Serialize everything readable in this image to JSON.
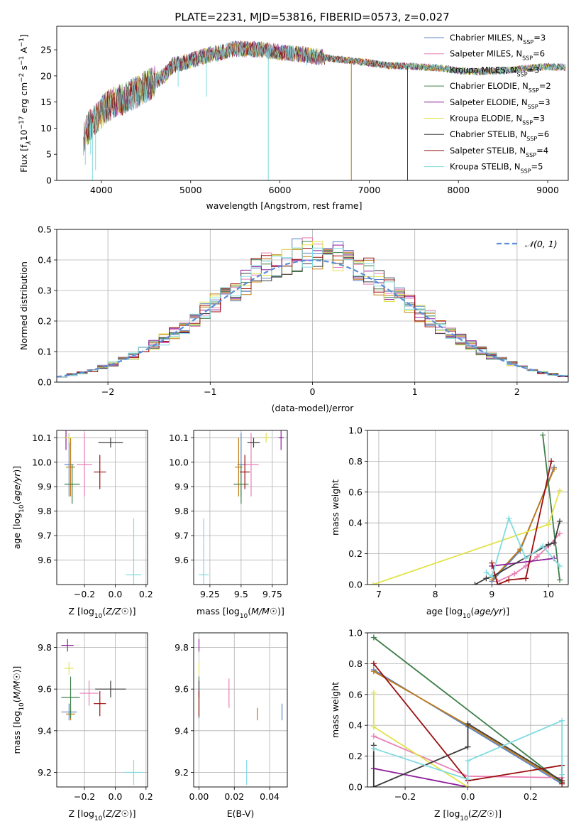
{
  "figure_title": "PLATE=2231, MJD=53816, FIBERID=0573, z=0.027",
  "colors": {
    "Chabrier MILES": "#5b84c4",
    "Salpeter MILES": "#e87eb4",
    "Kroupa MILES": "#c07b16",
    "Chabrier ELODIE": "#3f7f4a",
    "Salpeter ELODIE": "#8e1f9a",
    "Kroupa ELODIE": "#e1e34a",
    "Chabrier STELIB": "#3c3c3c",
    "Salpeter STELIB": "#9b0e0e",
    "Kroupa STELIB": "#80dbe0",
    "gauss": "#5b8dd6",
    "grid": "#b0b0b0"
  },
  "chart_data": [
    {
      "id": "spectrum",
      "type": "line",
      "title": "PLATE=2231, MJD=53816, FIBERID=0573, z=0.027",
      "xlabel": "wavelength [Angstrom, rest frame]",
      "ylabel_parts": [
        "Flux [f",
        "λ",
        "10",
        "−17",
        " erg cm",
        "−2",
        " s",
        "−1",
        " A",
        "−1",
        "]"
      ],
      "xlim": [
        3500,
        9230
      ],
      "ylim": [
        0,
        29.5
      ],
      "xticks": [
        4000,
        5000,
        6000,
        7000,
        8000,
        9000
      ],
      "yticks": [
        0,
        5,
        10,
        15,
        20,
        25
      ],
      "grid": false,
      "legend_position": "top-right",
      "series_legend": [
        {
          "name": "Chabrier MILES",
          "label": "Chabrier MILES, N",
          "sub": "SSP",
          "tail": "=3"
        },
        {
          "name": "Salpeter MILES",
          "label": "Salpeter MILES, N",
          "sub": "SSP",
          "tail": "=6"
        },
        {
          "name": "Kroupa MILES",
          "label": "Kroupa MILES, N",
          "sub": "SSP",
          "tail": "=3"
        },
        {
          "name": "Chabrier ELODIE",
          "label": "Chabrier ELODIE, N",
          "sub": "SSP",
          "tail": "=2"
        },
        {
          "name": "Salpeter ELODIE",
          "label": "Salpeter ELODIE, N",
          "sub": "SSP",
          "tail": "=3"
        },
        {
          "name": "Kroupa ELODIE",
          "label": "Kroupa ELODIE, N",
          "sub": "SSP",
          "tail": "=3"
        },
        {
          "name": "Chabrier STELIB",
          "label": "Chabrier STELIB, N",
          "sub": "SSP",
          "tail": "=6"
        },
        {
          "name": "Salpeter STELIB",
          "label": "Salpeter STELIB, N",
          "sub": "SSP",
          "tail": "=4"
        },
        {
          "name": "Kroupa STELIB",
          "label": "Kroupa STELIB, N",
          "sub": "SSP",
          "tail": "=5"
        }
      ],
      "continuum": [
        [
          3800,
          8
        ],
        [
          3850,
          10
        ],
        [
          3950,
          12
        ],
        [
          4050,
          14
        ],
        [
          4150,
          15
        ],
        [
          4300,
          16
        ],
        [
          4400,
          17
        ],
        [
          4500,
          18
        ],
        [
          4700,
          20
        ],
        [
          4800,
          22
        ],
        [
          5000,
          23
        ],
        [
          5200,
          24
        ],
        [
          5500,
          25.2
        ],
        [
          5800,
          25
        ],
        [
          6000,
          24.5
        ],
        [
          6200,
          24.2
        ],
        [
          6500,
          23.5
        ],
        [
          7000,
          22.5
        ],
        [
          7200,
          22
        ],
        [
          7500,
          21.8
        ],
        [
          7800,
          21.5
        ],
        [
          8000,
          21
        ],
        [
          8200,
          20.8
        ],
        [
          8500,
          21
        ],
        [
          8800,
          21.5
        ],
        [
          9000,
          21.8
        ],
        [
          9200,
          21.6
        ]
      ],
      "dips": [
        [
          3820,
          3
        ],
        [
          3880,
          5
        ],
        [
          3900,
          0
        ],
        [
          3935,
          2
        ],
        [
          4340,
          16
        ],
        [
          4860,
          18
        ],
        [
          5175,
          16
        ],
        [
          5870,
          0
        ],
        [
          6300,
          22
        ],
        [
          6800,
          0
        ],
        [
          7430,
          0
        ]
      ]
    },
    {
      "id": "residuals",
      "type": "step",
      "xlabel": "(data-model)/error",
      "ylabel": "Normed distribution",
      "xlim": [
        -2.5,
        2.5
      ],
      "ylim": [
        0,
        0.5
      ],
      "xticks": [
        -2,
        -1,
        0,
        1,
        2
      ],
      "yticks": [
        0.0,
        0.1,
        0.2,
        0.3,
        0.4,
        0.5
      ],
      "grid": true,
      "legend_position": "top-right",
      "legend_label": "𝒩(0, 1)",
      "bin_width": 0.1,
      "reference_curve": "normal(0,1)"
    },
    {
      "id": "age-vs-Z",
      "type": "errorbar",
      "xlabel": "Z [log10(Z/Z☉)]",
      "ylabel": "age  [log10(age/yr)]",
      "xlim": [
        -0.38,
        0.21
      ],
      "ylim": [
        9.5,
        10.13
      ],
      "xticks": [
        -0.2,
        0.0,
        0.2
      ],
      "yticks": [
        9.6,
        9.7,
        9.8,
        9.9,
        10.0,
        10.1
      ],
      "grid": true,
      "points": [
        {
          "series": "Chabrier MILES",
          "x": -0.3,
          "y": 9.99,
          "xerr": 0.03,
          "yerr": 0.13
        },
        {
          "series": "Salpeter MILES",
          "x": -0.2,
          "y": 9.99,
          "xerr": 0.05,
          "yerr": 0.13
        },
        {
          "series": "Kroupa MILES",
          "x": -0.29,
          "y": 9.98,
          "xerr": 0.03,
          "yerr": 0.12
        },
        {
          "series": "Chabrier ELODIE",
          "x": -0.28,
          "y": 9.91,
          "xerr": 0.05,
          "yerr": 0.08
        },
        {
          "series": "Salpeter ELODIE",
          "x": -0.32,
          "y": 10.1,
          "xerr": 0.01,
          "yerr": 0.05
        },
        {
          "series": "Kroupa ELODIE",
          "x": -0.3,
          "y": 10.1,
          "xerr": 0.03,
          "yerr": 0.02
        },
        {
          "series": "Chabrier STELIB",
          "x": -0.03,
          "y": 10.08,
          "xerr": 0.08,
          "yerr": 0.02
        },
        {
          "series": "Salpeter STELIB",
          "x": -0.1,
          "y": 9.96,
          "xerr": 0.04,
          "yerr": 0.07
        },
        {
          "series": "Kroupa STELIB",
          "x": 0.12,
          "y": 9.54,
          "xerr": 0.05,
          "yerr": 0.23
        }
      ]
    },
    {
      "id": "age-vs-mass",
      "type": "errorbar",
      "xlabel": "mass [log10(M/M☉)]",
      "xlim": [
        9.12,
        9.87
      ],
      "ylim": [
        9.5,
        10.13
      ],
      "xticks": [
        9.25,
        9.5,
        9.75
      ],
      "yticks": [
        9.6,
        9.7,
        9.8,
        9.9,
        10.0,
        10.1
      ],
      "grid": true,
      "points": [
        {
          "series": "Chabrier MILES",
          "x": 9.5,
          "y": 9.99,
          "xerr": 0.03,
          "yerr": 0.13
        },
        {
          "series": "Salpeter MILES",
          "x": 9.58,
          "y": 9.99,
          "xerr": 0.06,
          "yerr": 0.13
        },
        {
          "series": "Kroupa MILES",
          "x": 9.48,
          "y": 9.98,
          "xerr": 0.03,
          "yerr": 0.12
        },
        {
          "series": "Chabrier ELODIE",
          "x": 9.5,
          "y": 9.91,
          "xerr": 0.06,
          "yerr": 0.08
        },
        {
          "series": "Salpeter ELODIE",
          "x": 9.82,
          "y": 10.1,
          "xerr": 0.02,
          "yerr": 0.05
        },
        {
          "series": "Kroupa ELODIE",
          "x": 9.7,
          "y": 10.1,
          "xerr": 0.03,
          "yerr": 0.02
        },
        {
          "series": "Chabrier STELIB",
          "x": 9.6,
          "y": 10.08,
          "xerr": 0.05,
          "yerr": 0.02
        },
        {
          "series": "Salpeter STELIB",
          "x": 9.53,
          "y": 9.96,
          "xerr": 0.04,
          "yerr": 0.07
        },
        {
          "series": "Kroupa STELIB",
          "x": 9.2,
          "y": 9.54,
          "xerr": 0.04,
          "yerr": 0.23
        }
      ]
    },
    {
      "id": "mass-weight-vs-age",
      "type": "line",
      "xlabel": "age  [log10(age/yr)]",
      "ylabel": "mass weight",
      "xlim": [
        6.8,
        10.35
      ],
      "ylim": [
        0,
        1.0
      ],
      "xticks": [
        7,
        8,
        9,
        10
      ],
      "yticks": [
        0.0,
        0.2,
        0.4,
        0.6,
        0.8,
        1.0
      ],
      "grid": true,
      "series": [
        {
          "name": "Chabrier MILES",
          "x": [
            9.0,
            9.5,
            10.1
          ],
          "y": [
            0.02,
            0.22,
            0.76
          ]
        },
        {
          "name": "Salpeter MILES",
          "x": [
            9.1,
            9.4,
            9.6,
            9.8,
            10.0,
            10.2
          ],
          "y": [
            0.02,
            0.07,
            0.12,
            0.18,
            0.25,
            0.33
          ]
        },
        {
          "name": "Kroupa MILES",
          "x": [
            9.0,
            9.5,
            10.1
          ],
          "y": [
            0.03,
            0.23,
            0.75
          ]
        },
        {
          "name": "Chabrier ELODIE",
          "x": [
            9.9,
            10.2
          ],
          "y": [
            0.97,
            0.03
          ]
        },
        {
          "name": "Salpeter ELODIE",
          "x": [
            9.0,
            10.1
          ],
          "y": [
            0.12,
            0.17
          ]
        },
        {
          "name": "Kroupa ELODIE",
          "x": [
            6.9,
            10.0,
            10.2
          ],
          "y": [
            0.0,
            0.39,
            0.61
          ]
        },
        {
          "name": "Chabrier STELIB",
          "x": [
            8.7,
            8.9,
            9.0,
            10.0,
            10.1,
            10.2
          ],
          "y": [
            0.0,
            0.04,
            0.05,
            0.26,
            0.27,
            0.41
          ]
        },
        {
          "name": "Salpeter STELIB",
          "x": [
            9.0,
            9.1,
            9.3,
            9.6,
            10.05
          ],
          "y": [
            0.14,
            0.0,
            0.03,
            0.04,
            0.8
          ]
        },
        {
          "name": "Kroupa STELIB",
          "x": [
            8.9,
            9.0,
            9.3,
            9.6,
            9.9,
            10.2
          ],
          "y": [
            0.08,
            0.05,
            0.43,
            0.17,
            0.25,
            0.12
          ]
        }
      ]
    },
    {
      "id": "mass-vs-Z",
      "type": "errorbar",
      "xlabel": "Z [log10(Z/Z☉)]",
      "ylabel": "mass [log10(M/M☉)]",
      "xlim": [
        -0.38,
        0.21
      ],
      "ylim": [
        9.13,
        9.87
      ],
      "xticks": [
        -0.2,
        0.0,
        0.2
      ],
      "yticks": [
        9.2,
        9.4,
        9.6,
        9.8
      ],
      "grid": true,
      "points": [
        {
          "series": "Chabrier MILES",
          "x": -0.3,
          "y": 9.49,
          "xerr": 0.05,
          "yerr": 0.04
        },
        {
          "series": "Salpeter MILES",
          "x": -0.17,
          "y": 9.58,
          "xerr": 0.06,
          "yerr": 0.06
        },
        {
          "series": "Kroupa MILES",
          "x": -0.29,
          "y": 9.48,
          "xerr": 0.03,
          "yerr": 0.03
        },
        {
          "series": "Chabrier ELODIE",
          "x": -0.29,
          "y": 9.56,
          "xerr": 0.06,
          "yerr": 0.1
        },
        {
          "series": "Salpeter ELODIE",
          "x": -0.31,
          "y": 9.81,
          "xerr": 0.04,
          "yerr": 0.03
        },
        {
          "series": "Kroupa ELODIE",
          "x": -0.3,
          "y": 9.7,
          "xerr": 0.03,
          "yerr": 0.03
        },
        {
          "series": "Chabrier STELIB",
          "x": -0.03,
          "y": 9.6,
          "xerr": 0.1,
          "yerr": 0.04
        },
        {
          "series": "Salpeter STELIB",
          "x": -0.1,
          "y": 9.53,
          "xerr": 0.04,
          "yerr": 0.06
        },
        {
          "series": "Kroupa STELIB",
          "x": 0.12,
          "y": 9.2,
          "xerr": 0.06,
          "yerr": 0.06
        }
      ]
    },
    {
      "id": "mass-vs-EBV",
      "type": "errorbar",
      "xlabel": "E(B-V)",
      "xlim": [
        -0.003,
        0.05
      ],
      "ylim": [
        9.13,
        9.87
      ],
      "xticks": [
        0.0,
        0.02,
        0.04
      ],
      "yticks": [
        9.2,
        9.4,
        9.6,
        9.8
      ],
      "grid": true,
      "points": [
        {
          "series": "Chabrier MILES",
          "x": 0.047,
          "y": 9.49,
          "xerr": 0,
          "yerr": 0.04
        },
        {
          "series": "Salpeter MILES",
          "x": 0.017,
          "y": 9.58,
          "xerr": 0,
          "yerr": 0.07
        },
        {
          "series": "Kroupa MILES",
          "x": 0.033,
          "y": 9.48,
          "xerr": 0,
          "yerr": 0.03
        },
        {
          "series": "Chabrier ELODIE",
          "x": 0.0,
          "y": 9.56,
          "xerr": 0,
          "yerr": 0.1
        },
        {
          "series": "Salpeter ELODIE",
          "x": 0.0,
          "y": 9.81,
          "xerr": 0,
          "yerr": 0.03
        },
        {
          "series": "Kroupa ELODIE",
          "x": 0.0,
          "y": 9.7,
          "xerr": 0,
          "yerr": 0.03
        },
        {
          "series": "Chabrier STELIB",
          "x": 0.0,
          "y": 9.6,
          "xerr": 0,
          "yerr": 0.04
        },
        {
          "series": "Salpeter STELIB",
          "x": 0.0,
          "y": 9.53,
          "xerr": 0,
          "yerr": 0.06
        },
        {
          "series": "Kroupa STELIB",
          "x": 0.027,
          "y": 9.2,
          "xerr": 0,
          "yerr": 0.06
        }
      ]
    },
    {
      "id": "mass-weight-vs-Z",
      "type": "line",
      "xlabel": "Z [log10(Z/Z☉)]",
      "ylabel": "mass weight",
      "xlim": [
        -0.32,
        0.32
      ],
      "ylim": [
        0,
        1.0
      ],
      "xticks": [
        -0.2,
        0.0,
        0.2
      ],
      "yticks": [
        0.0,
        0.2,
        0.4,
        0.6,
        0.8,
        1.0
      ],
      "grid": true,
      "series": [
        {
          "name": "Chabrier MILES",
          "x": [
            -0.3,
            0.0,
            0.3
          ],
          "y": [
            0.76,
            0.39,
            0.02
          ]
        },
        {
          "name": "Salpeter MILES",
          "x": [
            -0.3,
            0.0,
            0.3
          ],
          "y": [
            0.33,
            0.07,
            0.06
          ]
        },
        {
          "name": "Kroupa MILES",
          "x": [
            -0.3,
            0.0,
            0.3
          ],
          "y": [
            0.75,
            0.4,
            0.03
          ]
        },
        {
          "name": "Chabrier ELODIE",
          "x": [
            -0.3,
            0.3
          ],
          "y": [
            0.97,
            0.03
          ]
        },
        {
          "name": "Salpeter ELODIE",
          "x": [
            -0.3,
            0.0
          ],
          "y": [
            0.12,
            0.0
          ]
        },
        {
          "name": "Kroupa ELODIE",
          "x": [
            -0.3,
            -0.3,
            0.0
          ],
          "y": [
            0.61,
            0.39,
            0.0
          ]
        },
        {
          "name": "Chabrier STELIB",
          "x": [
            -0.3,
            -0.3,
            0.0,
            0.0,
            0.3
          ],
          "y": [
            0.27,
            0.0,
            0.26,
            0.41,
            0.04
          ]
        },
        {
          "name": "Salpeter STELIB",
          "x": [
            -0.3,
            0.0,
            0.3,
            0.3
          ],
          "y": [
            0.8,
            0.04,
            0.14,
            0.02
          ]
        },
        {
          "name": "Kroupa STELIB",
          "x": [
            -0.3,
            0.0,
            0.0,
            0.3,
            0.3
          ],
          "y": [
            0.25,
            0.05,
            0.17,
            0.43,
            0.08
          ]
        }
      ]
    }
  ]
}
